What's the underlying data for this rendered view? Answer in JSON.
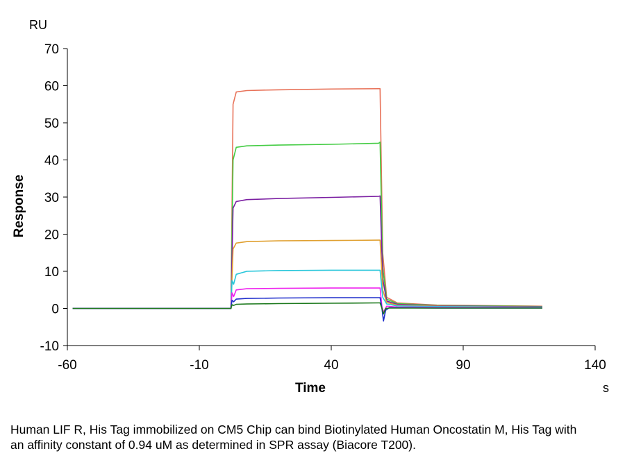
{
  "chart_data": {
    "type": "line",
    "xlabel": "Time",
    "ylabel": "Response",
    "x_unit": "s",
    "y_unit": "RU",
    "xlim": [
      -60,
      140
    ],
    "ylim": [
      -10,
      70
    ],
    "x_ticks": [
      -60,
      -10,
      40,
      90,
      140
    ],
    "y_ticks": [
      -10,
      0,
      10,
      20,
      30,
      40,
      50,
      60,
      70
    ],
    "grid": false,
    "series": [
      {
        "color": "#E8735A",
        "values": [
          [
            -58,
            0
          ],
          [
            0,
            0
          ],
          [
            2,
            0
          ],
          [
            2.8,
            55
          ],
          [
            4,
            58.3
          ],
          [
            8,
            58.7
          ],
          [
            20,
            58.9
          ],
          [
            40,
            59.1
          ],
          [
            58,
            59.2
          ],
          [
            58.5,
            59.2
          ],
          [
            59.5,
            15
          ],
          [
            61,
            3
          ],
          [
            65,
            1.5
          ],
          [
            80,
            0.9
          ],
          [
            120,
            0.6
          ]
        ]
      },
      {
        "color": "#44CC44",
        "values": [
          [
            -58,
            0
          ],
          [
            0,
            0
          ],
          [
            2,
            0
          ],
          [
            2.8,
            40
          ],
          [
            4,
            43.4
          ],
          [
            8,
            43.8
          ],
          [
            20,
            44
          ],
          [
            40,
            44.2
          ],
          [
            58,
            44.5
          ],
          [
            58.5,
            44.8
          ],
          [
            59.5,
            11
          ],
          [
            61,
            2.5
          ],
          [
            65,
            1.3
          ],
          [
            80,
            0.8
          ],
          [
            120,
            0.5
          ]
        ]
      },
      {
        "color": "#7B1FA2",
        "values": [
          [
            -58,
            0
          ],
          [
            0,
            0
          ],
          [
            2,
            0
          ],
          [
            2.8,
            27
          ],
          [
            4,
            28.8
          ],
          [
            8,
            29.3
          ],
          [
            20,
            29.6
          ],
          [
            40,
            29.9
          ],
          [
            58,
            30.2
          ],
          [
            58.5,
            30.3
          ],
          [
            59.5,
            8
          ],
          [
            61,
            2
          ],
          [
            65,
            1.1
          ],
          [
            80,
            0.7
          ],
          [
            120,
            0.4
          ]
        ]
      },
      {
        "color": "#E0A030",
        "values": [
          [
            -58,
            0
          ],
          [
            0,
            0
          ],
          [
            2,
            0
          ],
          [
            2.8,
            16
          ],
          [
            4,
            17.6
          ],
          [
            8,
            18
          ],
          [
            20,
            18.2
          ],
          [
            40,
            18.3
          ],
          [
            58,
            18.4
          ],
          [
            58.5,
            18.4
          ],
          [
            59.5,
            5
          ],
          [
            61,
            1.6
          ],
          [
            65,
            0.9
          ],
          [
            80,
            0.6
          ],
          [
            120,
            0.3
          ]
        ]
      },
      {
        "color": "#26C6DA",
        "values": [
          [
            -58,
            0
          ],
          [
            0,
            0
          ],
          [
            2,
            0
          ],
          [
            2.4,
            7.5
          ],
          [
            3,
            6.5
          ],
          [
            4,
            9.2
          ],
          [
            8,
            10
          ],
          [
            20,
            10.2
          ],
          [
            40,
            10.3
          ],
          [
            58,
            10.3
          ],
          [
            58.5,
            10.3
          ],
          [
            59.5,
            3
          ],
          [
            61,
            1.2
          ],
          [
            65,
            0.7
          ],
          [
            80,
            0.5
          ],
          [
            120,
            0.3
          ]
        ]
      },
      {
        "color": "#EE22EE",
        "values": [
          [
            -58,
            0
          ],
          [
            0,
            0
          ],
          [
            2,
            0
          ],
          [
            2.4,
            4.2
          ],
          [
            3,
            3.2
          ],
          [
            4,
            5
          ],
          [
            8,
            5.3
          ],
          [
            20,
            5.4
          ],
          [
            40,
            5.5
          ],
          [
            58,
            5.5
          ],
          [
            58.5,
            5.5
          ],
          [
            59.2,
            0.5
          ],
          [
            59.8,
            -1
          ],
          [
            61,
            0.6
          ],
          [
            65,
            0.4
          ],
          [
            80,
            0.3
          ],
          [
            120,
            0.2
          ]
        ]
      },
      {
        "color": "#1F2ECC",
        "values": [
          [
            -58,
            0
          ],
          [
            0,
            0
          ],
          [
            2,
            0
          ],
          [
            2.4,
            2.2
          ],
          [
            3,
            1.8
          ],
          [
            4,
            2.5
          ],
          [
            8,
            2.7
          ],
          [
            20,
            2.8
          ],
          [
            40,
            2.9
          ],
          [
            58,
            2.9
          ],
          [
            58.5,
            2.9
          ],
          [
            59.2,
            0
          ],
          [
            59.8,
            -3.4
          ],
          [
            60.6,
            -0.5
          ],
          [
            62,
            0.2
          ],
          [
            80,
            0.1
          ],
          [
            120,
            0.1
          ]
        ]
      },
      {
        "color": "#1E7A1E",
        "values": [
          [
            -58,
            0
          ],
          [
            0,
            0
          ],
          [
            2,
            0
          ],
          [
            2.4,
            1
          ],
          [
            3,
            0.8
          ],
          [
            4,
            1.1
          ],
          [
            8,
            1.2
          ],
          [
            20,
            1.3
          ],
          [
            40,
            1.4
          ],
          [
            58,
            1.5
          ],
          [
            58.5,
            1.5
          ],
          [
            59.2,
            0
          ],
          [
            59.8,
            -1.5
          ],
          [
            60.6,
            0
          ],
          [
            62,
            0.1
          ],
          [
            80,
            0.1
          ],
          [
            120,
            0.1
          ]
        ]
      }
    ]
  },
  "caption": "Human LIF R, His Tag immobilized on CM5 Chip can bind Biotinylated Human Oncostatin M, His Tag with an affinity constant of 0.94 uM as determined in SPR assay (Biacore T200)."
}
